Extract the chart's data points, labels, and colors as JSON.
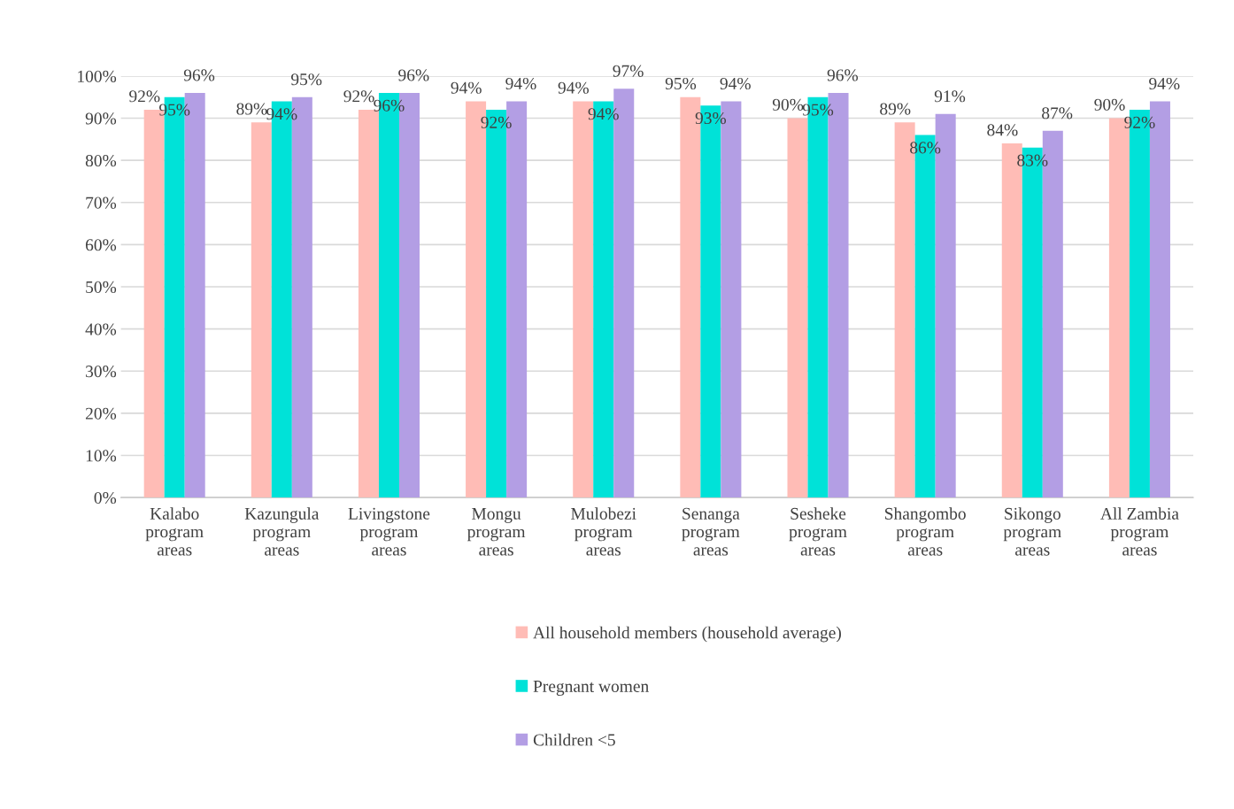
{
  "chart_data": {
    "type": "bar",
    "categories": [
      "Kalabo\nprogram\nareas",
      "Kazungula\nprogram\nareas",
      "Livingstone\nprogram\nareas",
      "Mongu\nprogram\nareas",
      "Mulobezi\nprogram\nareas",
      "Senanga\nprogram\nareas",
      "Sesheke\nprogram\nareas",
      "Shangombo\nprogram\nareas",
      "Sikongo\nprogram\nareas",
      "All Zambia\nprogram\nareas"
    ],
    "series": [
      {
        "name": "All household members (household average)",
        "color": "#ffbcb6",
        "values": [
          92,
          89,
          92,
          94,
          94,
          95,
          90,
          89,
          84,
          90
        ],
        "value_labels": [
          "92%",
          "89%",
          "92%",
          "94%",
          "94%",
          "95%",
          "90%",
          "89%",
          "84%",
          "90%"
        ]
      },
      {
        "name": "Pregnant women",
        "color": "#00e2d8",
        "values": [
          95,
          94,
          96,
          92,
          94,
          93,
          95,
          86,
          83,
          92
        ],
        "value_labels": [
          "95%",
          "94%",
          "96%",
          "92%",
          "94%",
          "93%",
          "95%",
          "86%",
          "83%",
          "92%"
        ]
      },
      {
        "name": "Children <5",
        "color": "#b39ee4",
        "values": [
          96,
          95,
          96,
          94,
          97,
          94,
          96,
          91,
          87,
          94
        ],
        "value_labels": [
          "96%",
          "95%",
          "96%",
          "94%",
          "97%",
          "94%",
          "96%",
          "91%",
          "87%",
          "94%"
        ]
      }
    ],
    "ylim": [
      0,
      100
    ],
    "yticks": [
      {
        "value": 0,
        "label": "0%"
      },
      {
        "value": 10,
        "label": "10%"
      },
      {
        "value": 20,
        "label": "20%"
      },
      {
        "value": 30,
        "label": "30%"
      },
      {
        "value": 40,
        "label": "40%"
      },
      {
        "value": 50,
        "label": "50%"
      },
      {
        "value": 60,
        "label": "60%"
      },
      {
        "value": 70,
        "label": "70%"
      },
      {
        "value": 80,
        "label": "80%"
      },
      {
        "value": 90,
        "label": "90%"
      },
      {
        "value": 100,
        "label": "100%"
      }
    ],
    "grid": "y",
    "legend": "bottom"
  }
}
